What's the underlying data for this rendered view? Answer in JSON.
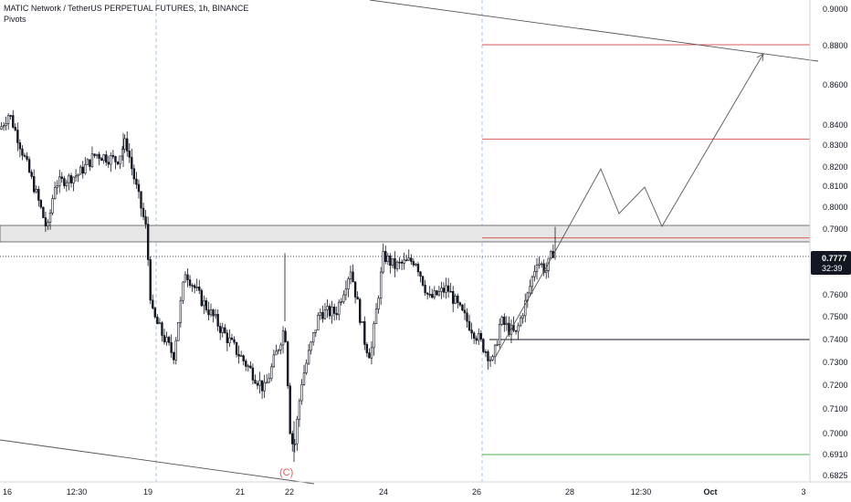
{
  "header": {
    "symbol_line": "MATIC Network / TetherUS PERPETUAL FUTURES, 1h, BINANCE",
    "indicator_label": "Pivots"
  },
  "price_axis": {
    "ticks": [
      "0.9000",
      "0.8800",
      "0.8600",
      "0.8400",
      "0.8300",
      "0.8200",
      "0.8100",
      "0.8000",
      "0.7900",
      "0.7800",
      "0.7700",
      "0.7600",
      "0.7500",
      "0.7400",
      "0.7300",
      "0.7200",
      "0.7100",
      "0.7000",
      "0.6910",
      "0.6825"
    ],
    "current_price": "0.7777",
    "countdown": "32:39"
  },
  "time_axis": {
    "ticks": [
      "16",
      "12:30",
      "19",
      "21",
      "22",
      "24",
      "26",
      "28",
      "12:30",
      "Oct",
      "3"
    ]
  },
  "annotations": {
    "wave_label": "(C)"
  },
  "colors": {
    "candle": "#131722",
    "pivot_resistance": "#e05a5a",
    "pivot_center": "#131722",
    "pivot_support": "#4caf50",
    "zone_fill": "#e6e6e6",
    "session_line": "#8fb4e6",
    "wave_label": "#e05a5a",
    "price_label_bg": "#131722"
  },
  "chart_data": {
    "type": "candlestick",
    "symbol": "MATIC Network / TetherUS PERPETUAL FUTURES",
    "timeframe": "1h",
    "exchange": "BINANCE",
    "current_price": 0.7777,
    "price_path_approx": [
      {
        "x": "16",
        "close": 0.835
      },
      {
        "x": "12:30",
        "close": 0.808
      },
      {
        "x": "19",
        "close": 0.79
      },
      {
        "x": "19",
        "close": 0.745
      },
      {
        "x": "21",
        "close": 0.728
      },
      {
        "x": "22",
        "close": 0.692
      },
      {
        "x": "22",
        "close": 0.735
      },
      {
        "x": "24",
        "close": 0.776
      },
      {
        "x": "24",
        "close": 0.765
      },
      {
        "x": "26",
        "close": 0.732
      },
      {
        "x": "28",
        "close": 0.7777
      }
    ],
    "resistance_zone": [
      0.7845,
      0.7905
    ],
    "pivot_levels": {
      "red": [
        0.8805,
        0.833,
        0.786
      ],
      "black": [
        0.74
      ],
      "green": [
        0.691
      ]
    },
    "projected_path": [
      0.7777,
      0.818,
      0.797,
      0.809,
      0.791,
      0.878
    ],
    "annotations": [
      "(C)"
    ]
  }
}
